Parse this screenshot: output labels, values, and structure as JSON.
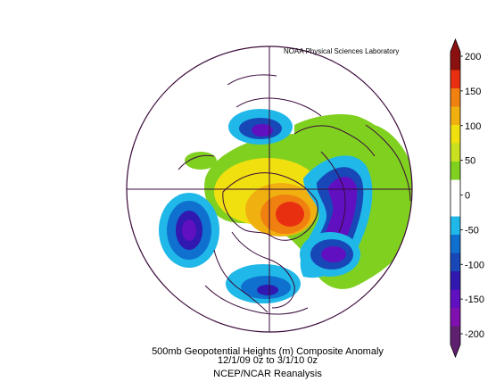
{
  "credit": "NOAA Physical Sciences Laboratory",
  "caption": {
    "line1": "500mb Geopotential Heights (m)   Composite Anomaly",
    "line2": "12/1/09 0z  to 3/1/10 0z",
    "line3": "NCEP/NCAR Reanalysis"
  },
  "colorbar": {
    "labels": [
      "200",
      "150",
      "100",
      "50",
      "0",
      "-50",
      "-100",
      "-150",
      "-200"
    ],
    "colors": [
      "#8b1010",
      "#e83010",
      "#f08010",
      "#f0b010",
      "#f0e010",
      "#c8e020",
      "#80d020",
      "#ffffff",
      "#ffffff",
      "#20b8e8",
      "#1070d0",
      "#1848b8",
      "#3018b0",
      "#6010c0",
      "#8010b0",
      "#602070"
    ]
  },
  "map_colors": {
    "ocean_ring": "#ffffff",
    "coastline": "#3a0a3a",
    "grid": "#3a0a3a"
  }
}
